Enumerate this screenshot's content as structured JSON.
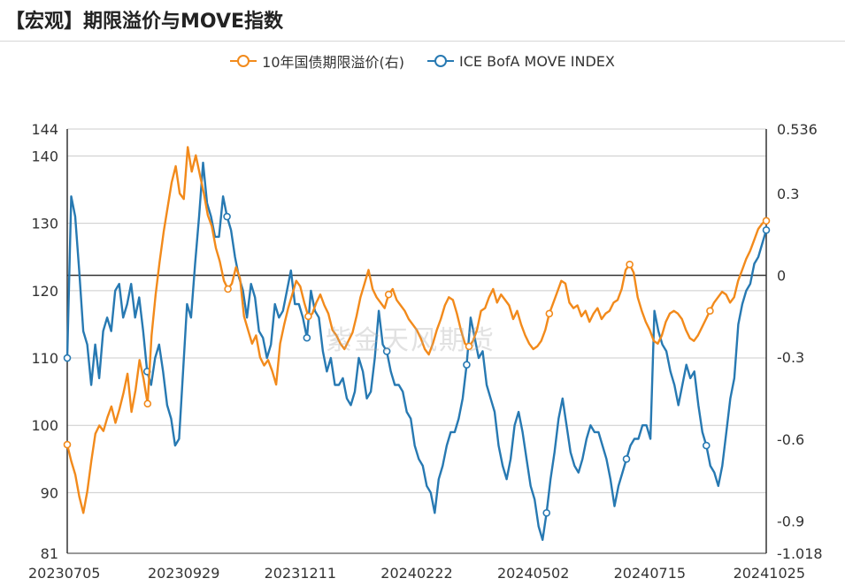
{
  "title": "【宏观】期限溢价与MOVE指数",
  "watermark": "紫金天风期货",
  "colors": {
    "orange": "#f28a1b",
    "blue": "#2779b2",
    "grid": "#cccccc",
    "axis": "#333333"
  },
  "chart_data": {
    "type": "line",
    "title": "【宏观】期限溢价与MOVE指数",
    "legend": [
      {
        "name": "10年国债期限溢价(右)",
        "color": "#f28a1b"
      },
      {
        "name": "ICE BofA MOVE INDEX",
        "color": "#2779b2"
      }
    ],
    "x_ticks": [
      "20230705",
      "20230929",
      "20231211",
      "20240222",
      "20240502",
      "20240715",
      "20241025"
    ],
    "left_axis": {
      "ticks": [
        81,
        90,
        100,
        110,
        120,
        130,
        140,
        144
      ],
      "ylim": [
        81,
        144
      ]
    },
    "right_axis": {
      "ticks": [
        -1.018,
        -0.9,
        -0.6,
        -0.3,
        0,
        0.3,
        0.536
      ],
      "ylim": [
        -1.018,
        0.536
      ]
    },
    "series": [
      {
        "name": "ICE BofA MOVE INDEX",
        "axis": "left",
        "x_start": 0,
        "x_end": 1,
        "values": [
          110,
          134,
          131,
          123,
          114,
          112,
          106,
          112,
          107,
          114,
          116,
          114,
          120,
          121,
          116,
          118,
          121,
          116,
          119,
          114,
          108,
          106,
          110,
          112,
          108,
          103,
          101,
          97,
          98,
          108,
          118,
          116,
          124,
          131,
          139,
          133,
          131,
          128,
          128,
          134,
          131,
          129,
          125,
          122,
          120,
          116,
          121,
          119,
          114,
          113,
          110,
          112,
          118,
          116,
          117,
          120,
          123,
          118,
          118,
          116,
          113,
          120,
          117,
          116,
          111,
          108,
          110,
          106,
          106,
          107,
          104,
          103,
          105,
          110,
          108,
          104,
          105,
          110,
          117,
          112,
          111,
          108,
          106,
          106,
          105,
          102,
          101,
          97,
          95,
          94,
          91,
          90,
          87,
          92,
          94,
          97,
          99,
          99,
          101,
          104,
          109,
          116,
          113,
          110,
          111,
          106,
          104,
          102,
          97,
          94,
          92,
          95,
          100,
          102,
          99,
          95,
          91,
          89,
          85,
          83,
          87,
          92,
          96,
          101,
          104,
          100,
          96,
          94,
          93,
          95,
          98,
          100,
          99,
          99,
          97,
          95,
          92,
          88,
          91,
          93,
          95,
          97,
          98,
          98,
          100,
          100,
          98,
          117,
          114,
          112,
          111,
          108,
          106,
          103,
          106,
          109,
          107,
          108,
          103,
          99,
          97,
          94,
          93,
          91,
          94,
          99,
          104,
          107,
          115,
          118,
          120,
          121,
          124,
          125,
          127,
          129
        ]
      },
      {
        "name": "10年国债期限溢价(右)",
        "axis": "right",
        "x_start": 0,
        "x_end": 1,
        "values": [
          -0.62,
          -0.68,
          -0.73,
          -0.81,
          -0.87,
          -0.79,
          -0.68,
          -0.58,
          -0.55,
          -0.57,
          -0.52,
          -0.48,
          -0.54,
          -0.49,
          -0.43,
          -0.36,
          -0.5,
          -0.42,
          -0.31,
          -0.38,
          -0.47,
          -0.22,
          -0.07,
          0.05,
          0.16,
          0.25,
          0.34,
          0.4,
          0.3,
          0.28,
          0.47,
          0.38,
          0.44,
          0.37,
          0.3,
          0.22,
          0.18,
          0.1,
          0.05,
          -0.02,
          -0.05,
          -0.03,
          0.03,
          -0.01,
          -0.15,
          -0.2,
          -0.25,
          -0.22,
          -0.3,
          -0.33,
          -0.31,
          -0.35,
          -0.4,
          -0.25,
          -0.18,
          -0.12,
          -0.07,
          -0.02,
          -0.04,
          -0.1,
          -0.15,
          -0.14,
          -0.1,
          -0.07,
          -0.11,
          -0.14,
          -0.2,
          -0.22,
          -0.25,
          -0.27,
          -0.24,
          -0.21,
          -0.15,
          -0.08,
          -0.03,
          0.02,
          -0.05,
          -0.08,
          -0.1,
          -0.12,
          -0.07,
          -0.05,
          -0.09,
          -0.11,
          -0.13,
          -0.16,
          -0.18,
          -0.2,
          -0.23,
          -0.27,
          -0.29,
          -0.25,
          -0.2,
          -0.16,
          -0.11,
          -0.08,
          -0.09,
          -0.14,
          -0.2,
          -0.25,
          -0.26,
          -0.24,
          -0.2,
          -0.13,
          -0.12,
          -0.08,
          -0.05,
          -0.1,
          -0.07,
          -0.09,
          -0.11,
          -0.16,
          -0.13,
          -0.18,
          -0.22,
          -0.25,
          -0.27,
          -0.26,
          -0.24,
          -0.2,
          -0.14,
          -0.1,
          -0.06,
          -0.02,
          -0.03,
          -0.1,
          -0.12,
          -0.11,
          -0.15,
          -0.13,
          -0.17,
          -0.14,
          -0.12,
          -0.16,
          -0.14,
          -0.13,
          -0.1,
          -0.09,
          -0.05,
          0.02,
          0.04,
          0.01,
          -0.08,
          -0.13,
          -0.17,
          -0.2,
          -0.24,
          -0.25,
          -0.22,
          -0.17,
          -0.14,
          -0.13,
          -0.14,
          -0.16,
          -0.2,
          -0.23,
          -0.24,
          -0.22,
          -0.19,
          -0.16,
          -0.13,
          -0.1,
          -0.08,
          -0.06,
          -0.07,
          -0.1,
          -0.08,
          -0.02,
          0.02,
          0.06,
          0.09,
          0.13,
          0.17,
          0.19,
          0.2
        ]
      }
    ]
  }
}
